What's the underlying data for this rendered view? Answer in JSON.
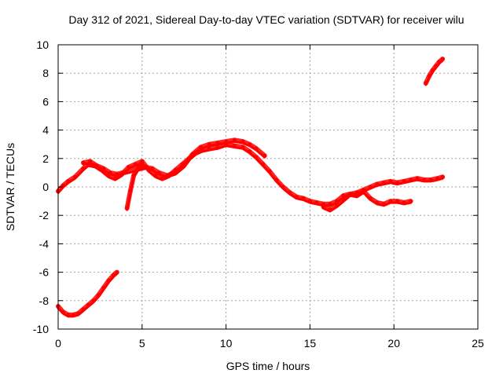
{
  "chart_data": {
    "type": "line",
    "title": "Day 312 of 2021, Sidereal Day-to-day VTEC variation (SDTVAR) for receiver wilu",
    "xlabel": "GPS time / hours",
    "ylabel": "SDTVAR / TECUs",
    "xlim": [
      0,
      25
    ],
    "ylim": [
      -10,
      10
    ],
    "xticks": [
      "0",
      "5",
      "10",
      "15",
      "20",
      "25"
    ],
    "yticks": [
      "-10",
      "-8",
      "-6",
      "-4",
      "-2",
      "0",
      "2",
      "4",
      "6",
      "8",
      "10"
    ],
    "grid": true,
    "color": "#ff0000",
    "series": [
      {
        "name": "main",
        "x": [
          0,
          0.3,
          0.6,
          1.0,
          1.5,
          1.8,
          2.2,
          2.6,
          3.0,
          3.4,
          3.8,
          4.2,
          4.6,
          5.0,
          5.4,
          5.8,
          6.2,
          6.6,
          7.0,
          7.4,
          7.8,
          8.2,
          8.6,
          9.0,
          9.5,
          10.0,
          10.5,
          11.0,
          11.4,
          11.8,
          12.2,
          12.6,
          13.0,
          13.4,
          13.8,
          14.2,
          14.6,
          15.0,
          15.4,
          15.8,
          16.2,
          16.6,
          17.0,
          17.4,
          17.8,
          18.2,
          18.6,
          19.0,
          19.4,
          19.8,
          20.2,
          20.6,
          21.0,
          21.4,
          21.8,
          22.2,
          22.6,
          22.9
        ],
        "y": [
          -0.3,
          0.1,
          0.4,
          0.7,
          1.3,
          1.6,
          1.5,
          1.2,
          0.8,
          0.6,
          0.9,
          1.4,
          1.6,
          1.8,
          1.2,
          0.8,
          0.6,
          0.8,
          1.2,
          1.6,
          2.0,
          2.4,
          2.6,
          2.7,
          2.8,
          3.0,
          2.9,
          2.8,
          2.5,
          2.1,
          1.6,
          1.1,
          0.5,
          0.0,
          -0.4,
          -0.7,
          -0.8,
          -1.0,
          -1.1,
          -1.2,
          -1.2,
          -1.0,
          -0.6,
          -0.5,
          -0.4,
          -0.2,
          0.0,
          0.2,
          0.3,
          0.4,
          0.3,
          0.4,
          0.5,
          0.6,
          0.5,
          0.5,
          0.6,
          0.7
        ]
      },
      {
        "name": "upper-band",
        "x": [
          1.5,
          1.9,
          2.3,
          2.7,
          3.1,
          3.5,
          5.2,
          5.6,
          6.0,
          6.5,
          7.0,
          7.5,
          8.0,
          8.5,
          9.0,
          9.5,
          10.0,
          10.5,
          11.0,
          11.4,
          11.8,
          12.3
        ],
        "y": [
          1.7,
          1.8,
          1.5,
          1.3,
          1.0,
          0.9,
          1.4,
          1.3,
          1.0,
          0.8,
          1.0,
          1.5,
          2.3,
          2.8,
          3.0,
          3.1,
          3.2,
          3.3,
          3.2,
          3.0,
          2.7,
          2.2
        ]
      },
      {
        "name": "lower-late",
        "x": [
          15.8,
          16.2,
          16.6,
          17.0,
          17.4,
          17.8,
          18.2,
          18.6,
          19.0,
          19.4,
          19.8,
          20.2,
          20.6,
          21.0
        ],
        "y": [
          -1.4,
          -1.6,
          -1.3,
          -0.9,
          -0.5,
          -0.6,
          -0.3,
          -0.8,
          -1.1,
          -1.2,
          -1.0,
          -1.0,
          -1.1,
          -1.0
        ]
      },
      {
        "name": "recovery",
        "x": [
          4.1,
          4.3,
          4.5,
          4.8,
          5.0
        ],
        "y": [
          -1.5,
          -0.3,
          0.8,
          1.4,
          1.5
        ]
      },
      {
        "name": "low-start",
        "x": [
          0,
          0.3,
          0.6,
          0.9,
          1.2,
          1.5,
          1.8,
          2.1,
          2.4,
          2.7,
          3.0,
          3.3,
          3.5
        ],
        "y": [
          -8.4,
          -8.8,
          -9.0,
          -9.0,
          -8.9,
          -8.6,
          -8.3,
          -8.0,
          -7.6,
          -7.1,
          -6.6,
          -6.2,
          -6.0
        ]
      },
      {
        "name": "high-end",
        "x": [
          21.9,
          22.1,
          22.3,
          22.5,
          22.7,
          22.9
        ],
        "y": [
          7.3,
          7.8,
          8.2,
          8.5,
          8.8,
          9.0
        ]
      }
    ]
  }
}
